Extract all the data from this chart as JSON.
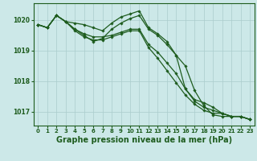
{
  "background_color": "#cce8e8",
  "grid_color": "#aacccc",
  "line_color": "#1e5c1e",
  "marker_color": "#1e5c1e",
  "xlabel": "Graphe pression niveau de la mer (hPa)",
  "xlabel_fontsize": 7,
  "yticks": [
    1017,
    1018,
    1019,
    1020
  ],
  "xticks": [
    0,
    1,
    2,
    3,
    4,
    5,
    6,
    7,
    8,
    9,
    10,
    11,
    12,
    13,
    14,
    15,
    16,
    17,
    18,
    19,
    20,
    21,
    22,
    23
  ],
  "xlim": [
    -0.5,
    23.5
  ],
  "ylim": [
    1016.55,
    1020.55
  ],
  "series": [
    [
      1019.85,
      1019.75,
      1020.15,
      1019.95,
      1019.9,
      1019.85,
      1019.75,
      1019.65,
      1019.9,
      1020.1,
      1020.2,
      1020.3,
      1019.75,
      1019.55,
      1019.3,
      1018.85,
      1018.5,
      1017.7,
      1017.2,
      1016.9,
      1016.85,
      1016.85,
      1016.85,
      1016.75
    ],
    [
      1019.85,
      1019.75,
      1020.15,
      1019.95,
      1019.7,
      1019.55,
      1019.45,
      1019.45,
      1019.5,
      1019.6,
      1019.7,
      1019.7,
      1019.2,
      1018.95,
      1018.6,
      1018.25,
      1017.75,
      1017.35,
      1017.15,
      1017.05,
      1016.95,
      1016.85,
      1016.85,
      1016.75
    ],
    [
      1019.85,
      1019.75,
      1020.15,
      1019.95,
      1019.65,
      1019.45,
      1019.35,
      1019.35,
      1019.45,
      1019.55,
      1019.65,
      1019.65,
      1019.1,
      1018.75,
      1018.35,
      1017.95,
      1017.55,
      1017.25,
      1017.05,
      1016.95,
      1016.95,
      1016.85,
      1016.85,
      1016.75
    ],
    [
      1019.85,
      1019.75,
      1020.15,
      1019.95,
      1019.7,
      1019.5,
      1019.3,
      1019.4,
      1019.7,
      1019.9,
      1020.05,
      1020.15,
      1019.7,
      1019.5,
      1019.2,
      1018.85,
      1017.75,
      1017.4,
      1017.3,
      1017.15,
      1016.95,
      1016.85,
      1016.85,
      1016.75
    ]
  ]
}
